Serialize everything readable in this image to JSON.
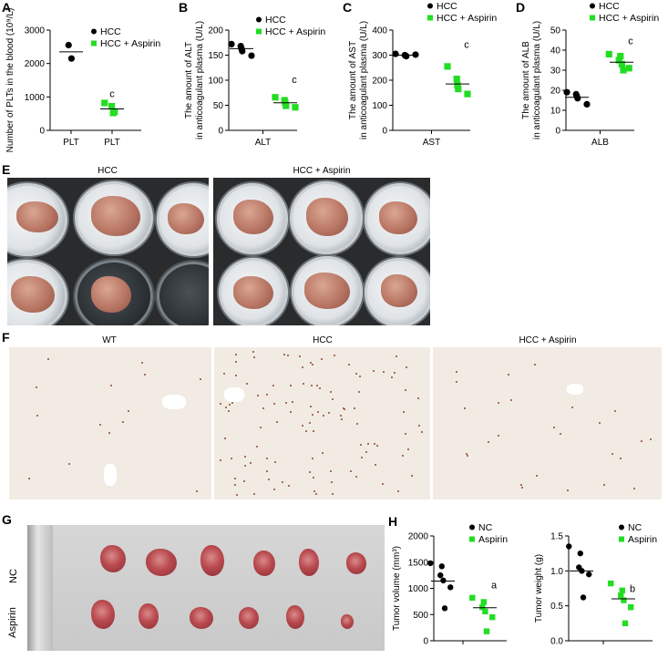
{
  "panels": {
    "A": "A",
    "B": "B",
    "C": "C",
    "D": "D",
    "E": "E",
    "F": "F",
    "G": "G",
    "H": "H"
  },
  "colors": {
    "hcc": "#000000",
    "aspirin": "#22dd22"
  },
  "chart_data": [
    {
      "id": "A",
      "type": "scatter",
      "ylabel": "Number of PLTs in the blood (10⁹/L)",
      "xlabel": "",
      "categories": [
        "PLT",
        "PLT"
      ],
      "ylim": [
        0,
        3000
      ],
      "yticks": [
        "0",
        "1000",
        "2000",
        "3000"
      ],
      "ytick_values": [
        0,
        1000,
        2000,
        3000
      ],
      "series": [
        {
          "name": "HCC",
          "category": 0,
          "values": [
            2550,
            2150
          ],
          "mean": 2350
        },
        {
          "name": "HCC + Aspirin",
          "category": 1,
          "values": [
            820,
            720,
            560,
            520
          ],
          "mean": 640
        }
      ],
      "annotation": {
        "text": "c",
        "category": 1,
        "y": 1000
      }
    },
    {
      "id": "B",
      "type": "scatter",
      "ylabel": "The amount of ALT in anticoagulant plasma (U/L)",
      "ylabel_lines": [
        "The amount of ALT",
        "in anticoagulant plasma (U/L)"
      ],
      "categories": [
        "ALT"
      ],
      "ylim": [
        0,
        200
      ],
      "yticks": [
        "0",
        "50",
        "100",
        "150",
        "200"
      ],
      "ytick_values": [
        0,
        50,
        100,
        150,
        200
      ],
      "series": [
        {
          "name": "HCC",
          "values": [
            172,
            168,
            163,
            158,
            149
          ],
          "mean": 163
        },
        {
          "name": "HCC + Aspirin",
          "values": [
            66,
            60,
            55,
            49,
            46
          ],
          "mean": 55
        }
      ],
      "annotation": {
        "text": "c",
        "y": 95
      }
    },
    {
      "id": "C",
      "type": "scatter",
      "ylabel": "The amount of AST in anticoagulant plasma (U/L)",
      "ylabel_lines": [
        "The amount of AST",
        "in anticoagulant plasma (U/L)"
      ],
      "categories": [
        "AST"
      ],
      "ylim": [
        0,
        400
      ],
      "yticks": [
        "0",
        "100",
        "200",
        "300",
        "400"
      ],
      "ytick_values": [
        0,
        100,
        200,
        300,
        400
      ],
      "series": [
        {
          "name": "HCC",
          "values": [
            305,
            300,
            298,
            296,
            302
          ],
          "mean": 300
        },
        {
          "name": "HCC + Aspirin",
          "values": [
            255,
            205,
            180,
            165,
            145
          ],
          "mean": 185
        }
      ],
      "annotation": {
        "text": "c",
        "y": 330
      }
    },
    {
      "id": "D",
      "type": "scatter",
      "ylabel": "The amount of ALB in anticoagulant plasma (U/L)",
      "ylabel_lines": [
        "The amount of ALB",
        "in anticoagulant plasma (U/L)"
      ],
      "categories": [
        "ALB"
      ],
      "ylim": [
        0,
        50
      ],
      "yticks": [
        "0",
        "10",
        "20",
        "30",
        "40",
        "50"
      ],
      "ytick_values": [
        0,
        10,
        20,
        30,
        40,
        50
      ],
      "series": [
        {
          "name": "HCC",
          "values": [
            19,
            18,
            17,
            16,
            13
          ],
          "mean": 16.5
        },
        {
          "name": "HCC + Aspirin",
          "values": [
            38,
            37,
            35,
            33,
            31,
            30
          ],
          "mean": 34
        }
      ],
      "annotation": {
        "text": "c",
        "y": 43
      }
    },
    {
      "id": "H1",
      "type": "scatter",
      "ylabel": "Tumor volume (mm³)",
      "categories": [],
      "ylim": [
        0,
        2000
      ],
      "yticks": [
        "0",
        "500",
        "1000",
        "1500",
        "2000"
      ],
      "ytick_values": [
        0,
        500,
        1000,
        1500,
        2000
      ],
      "series": [
        {
          "name": "NC",
          "values": [
            1480,
            1420,
            1250,
            1150,
            1020,
            620
          ],
          "mean": 1140
        },
        {
          "name": "Aspirin",
          "values": [
            820,
            740,
            640,
            560,
            450,
            180
          ],
          "mean": 630
        }
      ],
      "annotation": {
        "text": "a",
        "y": 1000
      }
    },
    {
      "id": "H2",
      "type": "scatter",
      "ylabel": "Tumor weight (g)",
      "categories": [],
      "ylim": [
        0,
        1.5
      ],
      "yticks": [
        "0.0",
        "0.5",
        "1.0",
        "1.5"
      ],
      "ytick_values": [
        0,
        0.5,
        1.0,
        1.5
      ],
      "series": [
        {
          "name": "NC",
          "values": [
            1.35,
            1.25,
            1.05,
            1.0,
            0.95,
            0.62
          ],
          "mean": 1.0
        },
        {
          "name": "Aspirin",
          "values": [
            0.82,
            0.72,
            0.65,
            0.58,
            0.48,
            0.25
          ],
          "mean": 0.6
        }
      ],
      "annotation": {
        "text": "b",
        "y": 0.7
      }
    }
  ],
  "panelE": {
    "left_label": "HCC",
    "right_label": "HCC + Aspirin"
  },
  "panelF": {
    "labels": [
      "WT",
      "HCC",
      "HCC + Aspirin"
    ]
  },
  "panelG": {
    "row_labels": [
      "NC",
      "Aspirin"
    ]
  }
}
